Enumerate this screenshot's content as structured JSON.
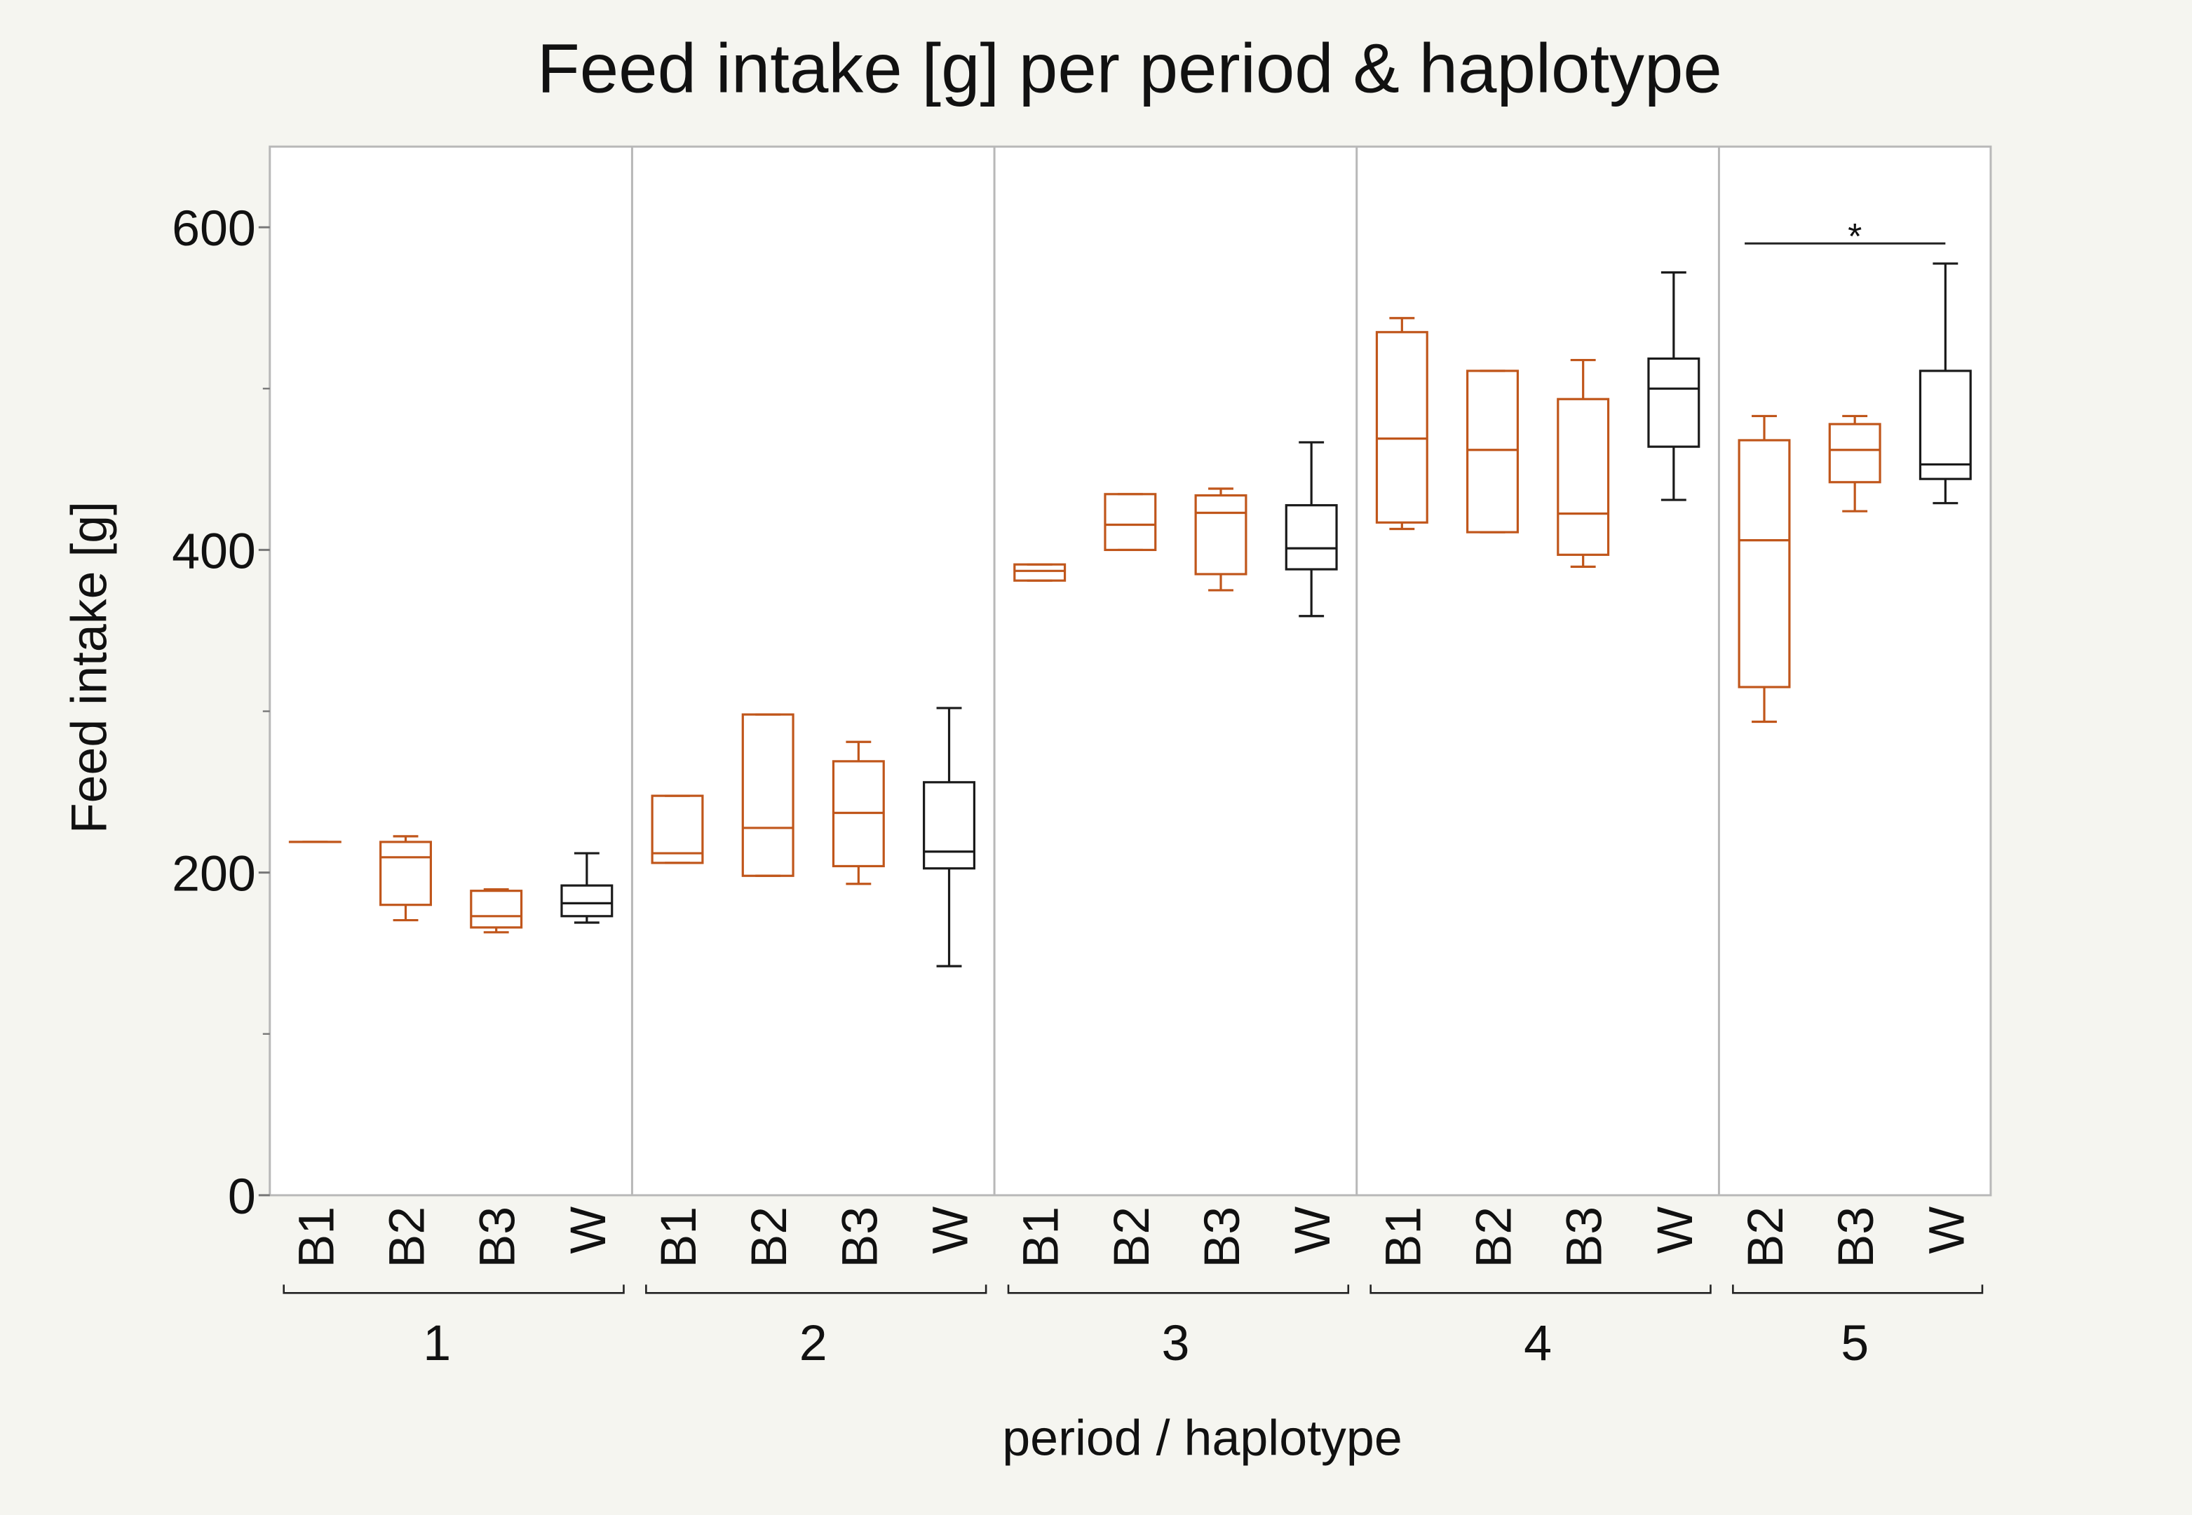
{
  "chart_data": {
    "type": "box",
    "title": "Feed intake [g] per period & haplotype",
    "x_label": "period / haplotype",
    "y_label": "Feed intake [g]",
    "ylim": [
      0,
      650
    ],
    "yticks": [
      0,
      200,
      400,
      600
    ],
    "minor_yticks": [
      100,
      300,
      500
    ],
    "category_colors": {
      "B1": "#c0561b",
      "B2": "#c0561b",
      "B3": "#c0561b",
      "W": "#1a1a1a"
    },
    "groups": [
      {
        "name": "1",
        "categories": [
          "B1",
          "B2",
          "B3",
          "W"
        ],
        "boxes": [
          [
            219,
            219,
            219,
            219,
            219
          ],
          [
            170.5,
            180,
            209.5,
            219,
            222.5
          ],
          [
            163,
            166,
            173,
            188.7,
            189.6
          ],
          [
            169,
            173,
            181,
            192,
            212
          ]
        ]
      },
      {
        "name": "2",
        "categories": [
          "B1",
          "B2",
          "B3",
          "W"
        ],
        "boxes": [
          [
            206,
            206,
            212,
            247.6,
            247.6
          ],
          [
            198,
            198,
            227.7,
            298,
            298
          ],
          [
            193,
            204,
            237,
            269,
            281
          ],
          [
            142,
            202.6,
            213,
            256,
            302
          ]
        ]
      },
      {
        "name": "3",
        "categories": [
          "B1",
          "B2",
          "B3",
          "W"
        ],
        "boxes": [
          [
            381,
            381,
            387,
            391,
            391
          ],
          [
            400,
            400,
            415.6,
            434.6,
            434.6
          ],
          [
            375,
            385,
            423,
            433.8,
            438
          ],
          [
            359,
            388,
            401,
            427.7,
            466.7
          ]
        ]
      },
      {
        "name": "4",
        "categories": [
          "B1",
          "B2",
          "B3",
          "W"
        ],
        "boxes": [
          [
            413,
            417,
            469,
            535,
            543.7
          ],
          [
            411,
            411,
            462,
            511,
            511
          ],
          [
            389.6,
            397,
            422.5,
            493.5,
            517.7
          ],
          [
            431,
            464,
            500,
            518.6,
            572
          ]
        ]
      },
      {
        "name": "5",
        "categories": [
          "B2",
          "B3",
          "W"
        ],
        "boxes": [
          [
            293.5,
            315,
            406,
            468,
            483
          ],
          [
            424,
            442,
            462,
            478,
            483
          ],
          [
            429,
            444,
            453,
            511,
            577.5
          ]
        ]
      }
    ],
    "annotation": {
      "text": "*",
      "group": 4,
      "from": 0,
      "to": 2,
      "y": 590
    }
  }
}
